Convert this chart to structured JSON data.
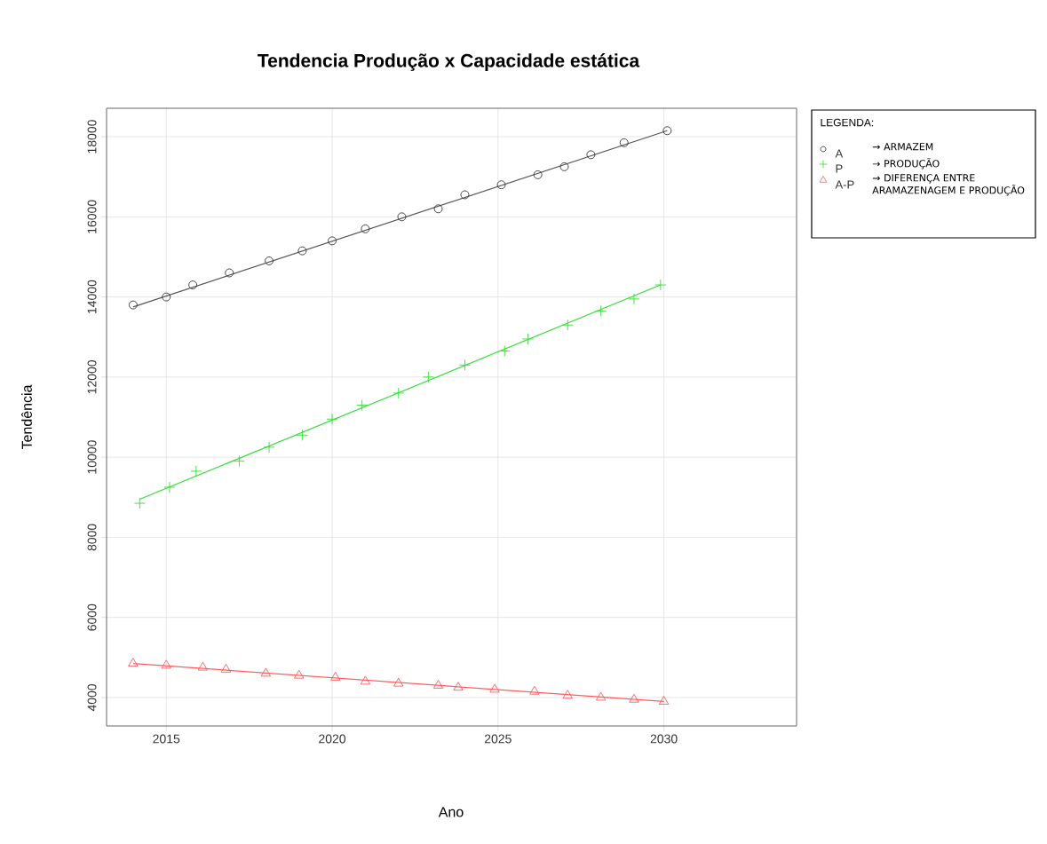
{
  "chart_data": {
    "type": "scatter",
    "title": "Tendencia Produção x Capacidade estática",
    "xlabel": "Ano",
    "ylabel": "Tendência",
    "legend_title": "LEGENDA:",
    "annotations": [
      "→ ARMAZEM",
      "→ PRODUÇÃO",
      "→ DIFERENÇA ENTRE ARAMAZENAGEM E PRODUÇÃO"
    ],
    "xlim": [
      2013.2,
      2034
    ],
    "ylim": [
      3290,
      18710
    ],
    "xticks": [
      2015,
      2020,
      2025,
      2030
    ],
    "yticks": [
      4000,
      6000,
      8000,
      10000,
      12000,
      14000,
      16000,
      18000
    ],
    "grid": true,
    "legend": "right",
    "series": [
      {
        "name": "A",
        "marker": "circle",
        "color": "#333333",
        "x": [
          2014,
          2015,
          2015.8,
          2016.9,
          2018.1,
          2019.1,
          2020,
          2021,
          2022.1,
          2023.2,
          2024,
          2025.1,
          2026.2,
          2027,
          2027.8,
          2028.8,
          2030.1
        ],
        "values": [
          13800,
          14000,
          14300,
          14600,
          14900,
          15150,
          15400,
          15700,
          16000,
          16200,
          16550,
          16800,
          17050,
          17250,
          17550,
          17850,
          18150
        ]
      },
      {
        "name": "P",
        "marker": "cross",
        "color": "#33dd33",
        "x": [
          2014.2,
          2015.1,
          2015.9,
          2017.2,
          2018.1,
          2019.1,
          2020,
          2020.9,
          2022,
          2022.9,
          2024,
          2025.2,
          2025.9,
          2027.1,
          2028.1,
          2029.1,
          2029.9
        ],
        "values": [
          8850,
          9250,
          9650,
          9900,
          10250,
          10550,
          10950,
          11300,
          11600,
          12000,
          12300,
          12650,
          12950,
          13300,
          13650,
          13950,
          14300
        ]
      },
      {
        "name": "A-P",
        "marker": "triangle",
        "color": "#ff5c5c",
        "x": [
          2014,
          2015,
          2016.1,
          2016.8,
          2018,
          2019,
          2020.1,
          2021,
          2022,
          2023.2,
          2023.8,
          2024.9,
          2026.1,
          2027.1,
          2028.1,
          2029.1,
          2030
        ],
        "values": [
          4850,
          4800,
          4750,
          4700,
          4600,
          4550,
          4500,
          4400,
          4350,
          4300,
          4250,
          4200,
          4150,
          4050,
          4000,
          3950,
          3900
        ]
      },
      {
        "type": "line",
        "marker": "none",
        "line_style": "solid",
        "color": "#555555",
        "x": [
          2014,
          2030.1
        ],
        "values": [
          13750,
          18150
        ]
      },
      {
        "type": "line",
        "marker": "none",
        "line_style": "solid",
        "color": "#33dd33",
        "x": [
          2014.2,
          2029.9
        ],
        "values": [
          8950,
          14300
        ]
      },
      {
        "type": "line",
        "marker": "none",
        "line_style": "solid",
        "color": "#ff5c5c",
        "x": [
          2014,
          2030
        ],
        "values": [
          4850,
          3900
        ]
      }
    ]
  }
}
